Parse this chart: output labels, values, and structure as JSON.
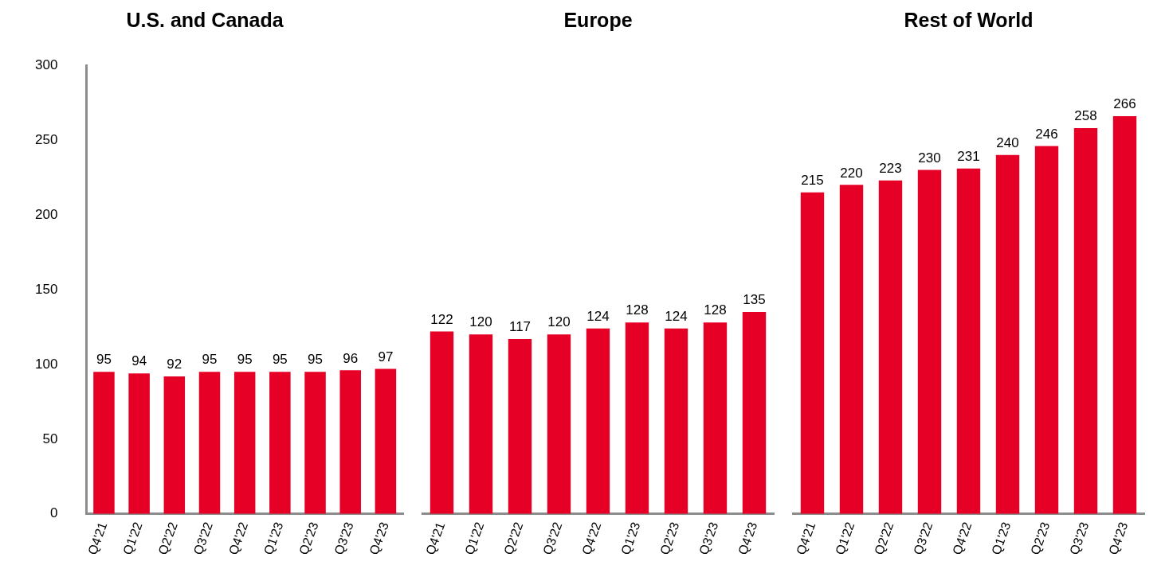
{
  "chart_data": [
    {
      "type": "bar",
      "title": "U.S. and Canada",
      "categories": [
        "Q4'21",
        "Q1'22",
        "Q2'22",
        "Q3'22",
        "Q4'22",
        "Q1'23",
        "Q2'23",
        "Q3'23",
        "Q4'23"
      ],
      "values": [
        95,
        94,
        92,
        95,
        95,
        95,
        95,
        96,
        97
      ],
      "color": "#e60026",
      "ylim": [
        0,
        300
      ],
      "yticks": [
        0,
        50,
        100,
        150,
        200,
        250,
        300
      ],
      "data_labels": true
    },
    {
      "type": "bar",
      "title": "Europe",
      "categories": [
        "Q4'21",
        "Q1'22",
        "Q2'22",
        "Q3'22",
        "Q4'22",
        "Q1'23",
        "Q2'23",
        "Q3'23",
        "Q4'23"
      ],
      "values": [
        122,
        120,
        117,
        120,
        124,
        128,
        124,
        128,
        135
      ],
      "color": "#e60026",
      "ylim": [
        0,
        300
      ],
      "data_labels": true,
      "tick_labels": "x"
    },
    {
      "type": "bar",
      "title": "Rest of World",
      "categories": [
        "Q4'21",
        "Q1'22",
        "Q2'22",
        "Q3'22",
        "Q4'22",
        "Q1'23",
        "Q2'23",
        "Q3'23",
        "Q4'23"
      ],
      "values": [
        215,
        220,
        223,
        230,
        231,
        240,
        246,
        258,
        266
      ],
      "color": "#e60026",
      "ylim": [
        0,
        300
      ],
      "data_labels": true,
      "tick_labels": "x"
    }
  ]
}
